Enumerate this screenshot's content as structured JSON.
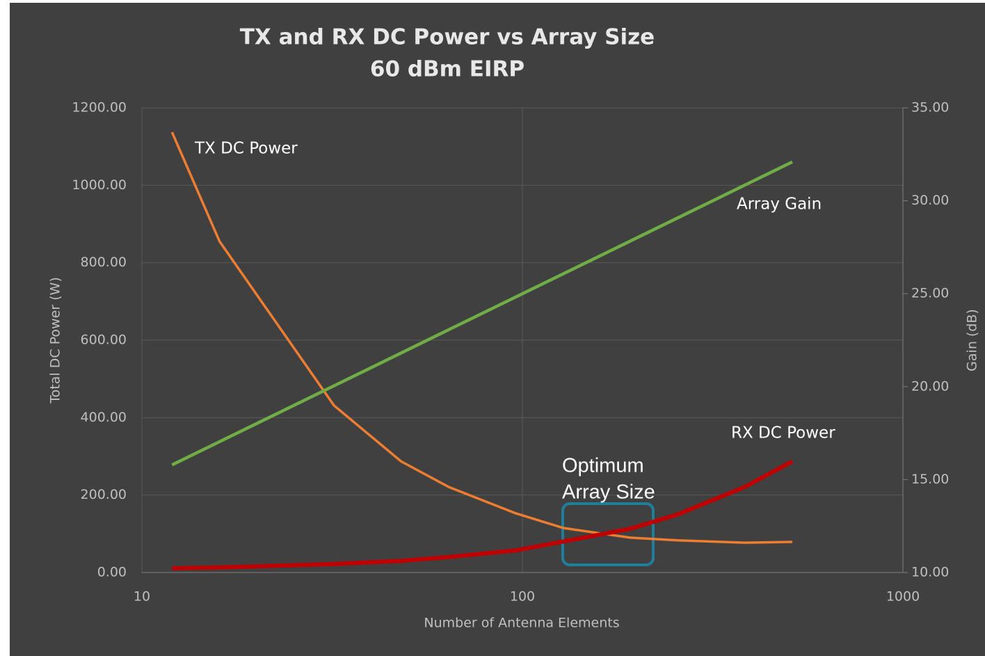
{
  "chart_data": {
    "type": "line",
    "title": "TX and RX DC Power vs Array Size",
    "subtitle": "60 dBm EIRP",
    "x_label": "Number of Antenna Elements",
    "y_label": "Total DC Power (W)",
    "y2_label": "Gain (dB)",
    "x_scale": "log",
    "x": [
      12,
      16,
      32,
      48,
      64,
      96,
      128,
      192,
      256,
      384,
      512
    ],
    "series": [
      {
        "name": "TX DC Power",
        "color": "#ed7d31",
        "values": [
          1137,
          855,
          431,
          287,
          221,
          153,
          115,
          90,
          83,
          77,
          79
        ]
      },
      {
        "name": "Array Gain",
        "color": "#70ad47",
        "axis": "y2",
        "values": [
          15.79,
          17.04,
          20.05,
          21.81,
          23.06,
          24.82,
          26.07,
          27.83,
          29.08,
          30.84,
          32.09
        ]
      },
      {
        "name": "RX DC Power",
        "color": "#c00000",
        "values": [
          11,
          13,
          22,
          30,
          40,
          57,
          80,
          113,
          150,
          221,
          287
        ]
      }
    ],
    "annotations": [
      "Optimum",
      "Array Size"
    ],
    "xlim": [
      10,
      1000
    ],
    "xticks": [
      10,
      100,
      1000
    ],
    "ylim": [
      0,
      1200
    ],
    "yticks": [
      {
        "value": 0,
        "label": "0.00"
      },
      {
        "value": 200,
        "label": "200.00"
      },
      {
        "value": 400,
        "label": "400.00"
      },
      {
        "value": 600,
        "label": "600.00"
      },
      {
        "value": 800,
        "label": "800.00"
      },
      {
        "value": 1000,
        "label": "1000.00"
      },
      {
        "value": 1200,
        "label": "1200.00"
      }
    ],
    "y2lim": [
      10,
      35
    ],
    "y2ticks": [
      {
        "value": 10,
        "label": "10.00"
      },
      {
        "value": 15,
        "label": "15.00"
      },
      {
        "value": 20,
        "label": "20.00"
      },
      {
        "value": 25,
        "label": "25.00"
      },
      {
        "value": 30,
        "label": "30.00"
      },
      {
        "value": 35,
        "label": "35.00"
      }
    ],
    "grid": true
  }
}
